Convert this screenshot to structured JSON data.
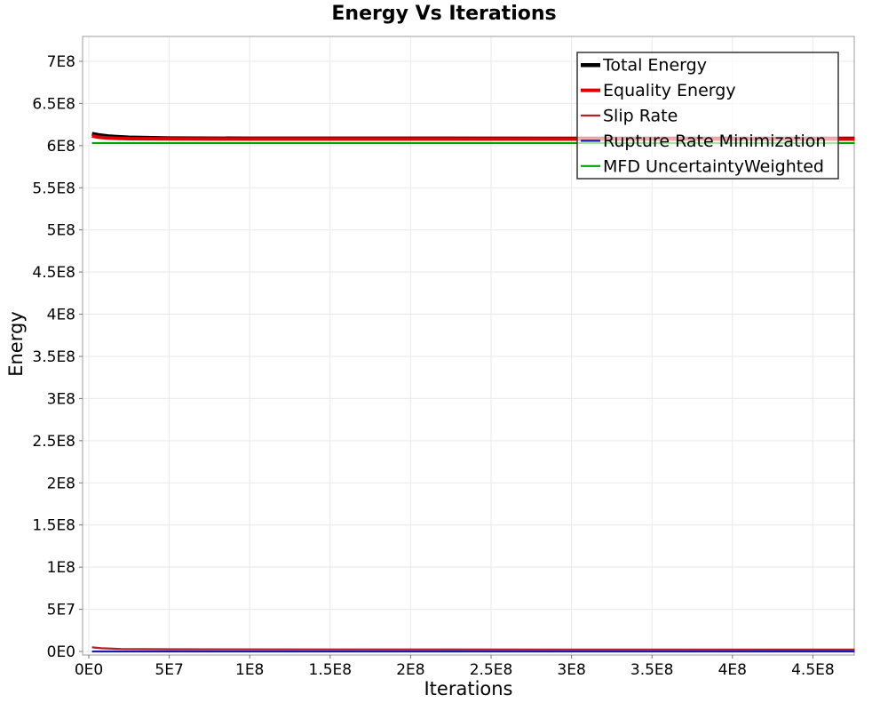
{
  "chart_data": {
    "type": "line",
    "title": "Energy Vs Iterations",
    "xlabel": "Iterations",
    "ylabel": "Energy",
    "xlim": [
      0,
      478000000
    ],
    "ylim": [
      0,
      730000000
    ],
    "grid": true,
    "legend_position": "top-right-inside",
    "legend_background": "rgba(255,255,255,0.66)",
    "grid_color": "#e9e9e9",
    "border_color": "#9e9e9e",
    "tick_color": "#777777",
    "x_ticks": [
      {
        "label": "0E0",
        "value": 0
      },
      {
        "label": "5E7",
        "value": 50000000
      },
      {
        "label": "1E8",
        "value": 100000000
      },
      {
        "label": "1.5E8",
        "value": 150000000
      },
      {
        "label": "2E8",
        "value": 200000000
      },
      {
        "label": "2.5E8",
        "value": 250000000
      },
      {
        "label": "3E8",
        "value": 300000000
      },
      {
        "label": "3.5E8",
        "value": 350000000
      },
      {
        "label": "4E8",
        "value": 400000000
      },
      {
        "label": "4.5E8",
        "value": 450000000
      }
    ],
    "y_ticks": [
      {
        "label": "0E0",
        "value": 0
      },
      {
        "label": "5E7",
        "value": 50000000
      },
      {
        "label": "1E8",
        "value": 100000000
      },
      {
        "label": "1.5E8",
        "value": 150000000
      },
      {
        "label": "2E8",
        "value": 200000000
      },
      {
        "label": "2.5E8",
        "value": 250000000
      },
      {
        "label": "3E8",
        "value": 300000000
      },
      {
        "label": "3.5E8",
        "value": 350000000
      },
      {
        "label": "4E8",
        "value": 400000000
      },
      {
        "label": "4.5E8",
        "value": 450000000
      },
      {
        "label": "5E8",
        "value": 500000000
      },
      {
        "label": "5.5E8",
        "value": 550000000
      },
      {
        "label": "6E8",
        "value": 600000000
      },
      {
        "label": "6.5E8",
        "value": 650000000
      },
      {
        "label": "7E8",
        "value": 700000000
      }
    ],
    "series": [
      {
        "name": "Total Energy",
        "color": "#000000",
        "width": 4.5,
        "points": [
          [
            2000000,
            614000000
          ],
          [
            6000000,
            612500000
          ],
          [
            12000000,
            611000000
          ],
          [
            25000000,
            609500000
          ],
          [
            50000000,
            608700000
          ],
          [
            100000000,
            608400000
          ],
          [
            476000000,
            608300000
          ]
        ]
      },
      {
        "name": "Equality Energy",
        "color": "#e00000",
        "width": 4,
        "points": [
          [
            2000000,
            611500000
          ],
          [
            6000000,
            610000000
          ],
          [
            12000000,
            609000000
          ],
          [
            25000000,
            608300000
          ],
          [
            50000000,
            607900000
          ],
          [
            100000000,
            607800000
          ],
          [
            476000000,
            607800000
          ]
        ]
      },
      {
        "name": "Slip Rate",
        "color": "#b22222",
        "width": 2.2,
        "points": [
          [
            2000000,
            4800000
          ],
          [
            8000000,
            3800000
          ],
          [
            20000000,
            3000000
          ],
          [
            50000000,
            2600000
          ],
          [
            150000000,
            2400000
          ],
          [
            476000000,
            2200000
          ]
        ]
      },
      {
        "name": "Rupture Rate Minimization",
        "color": "#1a1ab8",
        "width": 2.2,
        "points": [
          [
            2000000,
            0
          ],
          [
            476000000,
            0
          ]
        ]
      },
      {
        "name": "MFD UncertaintyWeighted",
        "color": "#00a400",
        "width": 2.2,
        "points": [
          [
            2000000,
            603000000
          ],
          [
            476000000,
            603000000
          ]
        ]
      }
    ]
  }
}
